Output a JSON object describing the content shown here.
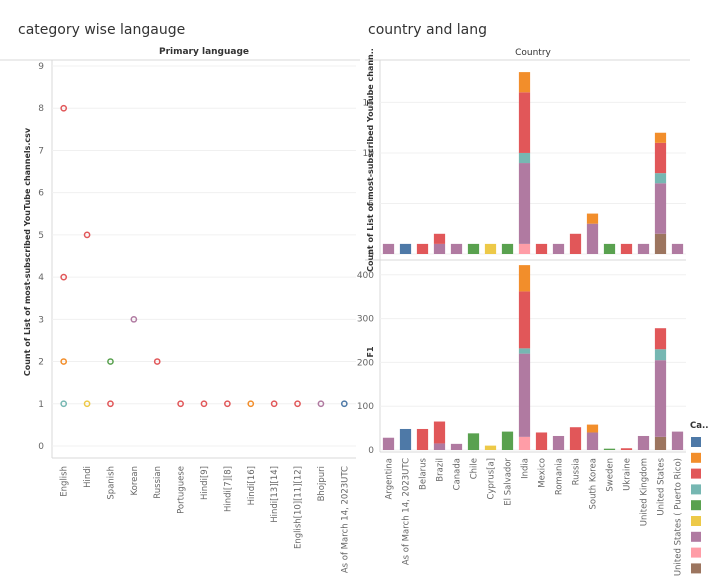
{
  "sheets": {
    "left_title": "category wise langauge",
    "right_title": "country and lang"
  },
  "colors": {
    "category_palette": [
      "#4e79a7",
      "#f28e2b",
      "#e15759",
      "#76b7b2",
      "#59a14f",
      "#edc948",
      "#b07aa1",
      "#ff9da7",
      "#9c755f"
    ]
  },
  "legend": {
    "title": "Ca..",
    "colors": [
      "#4e79a7",
      "#f28e2b",
      "#e15759",
      "#76b7b2",
      "#59a14f",
      "#edc948",
      "#b07aa1",
      "#ff9da7",
      "#9c755f"
    ]
  },
  "chart_data": [
    {
      "type": "scatter",
      "title": "Primary language",
      "ylabel": "Count of List of most-subscribed YouTube channels.csv",
      "xlabel": "",
      "ylim": [
        0,
        9
      ],
      "yticks": [
        0,
        1,
        2,
        3,
        4,
        5,
        6,
        7,
        8,
        9
      ],
      "grid": true,
      "categories": [
        "English",
        "Hindi",
        "Spanish",
        "Korean",
        "Russian",
        "Portuguese",
        "Hindi[9]",
        "Hindi[7][8]",
        "Hindi[16]",
        "Hindi[13][14]",
        "English[10][11][12]",
        "Bhojpuri",
        "As of March 14, 2023UTC"
      ],
      "points": [
        {
          "x": "English",
          "y": 8,
          "color": "#e15759"
        },
        {
          "x": "English",
          "y": 4,
          "color": "#e15759"
        },
        {
          "x": "English",
          "y": 2,
          "color": "#f28e2b"
        },
        {
          "x": "English",
          "y": 1,
          "color": "#76b7b2"
        },
        {
          "x": "Hindi",
          "y": 5,
          "color": "#e15759"
        },
        {
          "x": "Hindi",
          "y": 1,
          "color": "#edc948"
        },
        {
          "x": "Spanish",
          "y": 2,
          "color": "#59a14f"
        },
        {
          "x": "Spanish",
          "y": 1,
          "color": "#e15759"
        },
        {
          "x": "Korean",
          "y": 3,
          "color": "#b07aa1"
        },
        {
          "x": "Russian",
          "y": 2,
          "color": "#e15759"
        },
        {
          "x": "Portuguese",
          "y": 1,
          "color": "#e15759"
        },
        {
          "x": "Hindi[9]",
          "y": 1,
          "color": "#e15759"
        },
        {
          "x": "Hindi[7][8]",
          "y": 1,
          "color": "#e15759"
        },
        {
          "x": "Hindi[16]",
          "y": 1,
          "color": "#f28e2b"
        },
        {
          "x": "Hindi[13][14]",
          "y": 1,
          "color": "#e15759"
        },
        {
          "x": "English[10][11][12]",
          "y": 1,
          "color": "#e15759"
        },
        {
          "x": "Bhojpuri",
          "y": 1,
          "color": "#b07aa1"
        },
        {
          "x": "As of March 14, 2023UTC",
          "y": 1,
          "color": "#4e79a7"
        }
      ]
    },
    {
      "type": "bar",
      "stacked": true,
      "title": "Country",
      "categories": [
        "Argentina",
        "As of March 14, 2023UTC",
        "Belarus",
        "Brazil",
        "Canada",
        "Chile",
        "Cyprus[a]",
        "El Salvador",
        "India",
        "Mexico",
        "Romania",
        "Russia",
        "South Korea",
        "Sweden",
        "Ukraine",
        "United Kingdom",
        "United States",
        "United States ( Puerto Rico)"
      ],
      "panels": [
        {
          "ylabel": "Count of List of most-subscribed YouTube chann..",
          "ylim": [
            0,
            19
          ],
          "yticks": [
            0,
            5,
            10,
            15
          ],
          "stacks": [
            [
              {
                "color": "#b07aa1",
                "value": 1
              }
            ],
            [
              {
                "color": "#4e79a7",
                "value": 1
              }
            ],
            [
              {
                "color": "#e15759",
                "value": 1
              }
            ],
            [
              {
                "color": "#b07aa1",
                "value": 1
              },
              {
                "color": "#e15759",
                "value": 1
              }
            ],
            [
              {
                "color": "#b07aa1",
                "value": 1
              }
            ],
            [
              {
                "color": "#59a14f",
                "value": 1
              }
            ],
            [
              {
                "color": "#edc948",
                "value": 1
              }
            ],
            [
              {
                "color": "#59a14f",
                "value": 1
              }
            ],
            [
              {
                "color": "#ff9da7",
                "value": 1
              },
              {
                "color": "#b07aa1",
                "value": 8
              },
              {
                "color": "#76b7b2",
                "value": 1
              },
              {
                "color": "#e15759",
                "value": 6
              },
              {
                "color": "#f28e2b",
                "value": 2
              }
            ],
            [
              {
                "color": "#e15759",
                "value": 1
              }
            ],
            [
              {
                "color": "#b07aa1",
                "value": 1
              }
            ],
            [
              {
                "color": "#e15759",
                "value": 2
              }
            ],
            [
              {
                "color": "#b07aa1",
                "value": 3
              },
              {
                "color": "#f28e2b",
                "value": 1
              }
            ],
            [
              {
                "color": "#59a14f",
                "value": 1
              }
            ],
            [
              {
                "color": "#e15759",
                "value": 1
              }
            ],
            [
              {
                "color": "#b07aa1",
                "value": 1
              }
            ],
            [
              {
                "color": "#9c755f",
                "value": 2
              },
              {
                "color": "#b07aa1",
                "value": 5
              },
              {
                "color": "#76b7b2",
                "value": 1
              },
              {
                "color": "#e15759",
                "value": 3
              },
              {
                "color": "#f28e2b",
                "value": 1
              }
            ],
            [
              {
                "color": "#b07aa1",
                "value": 1
              }
            ]
          ]
        },
        {
          "ylabel": "F1",
          "ylim": [
            0,
            420
          ],
          "yticks": [
            0,
            100,
            200,
            300,
            400
          ],
          "stacks": [
            [
              {
                "color": "#b07aa1",
                "value": 28
              }
            ],
            [
              {
                "color": "#4e79a7",
                "value": 48
              }
            ],
            [
              {
                "color": "#e15759",
                "value": 48
              }
            ],
            [
              {
                "color": "#b07aa1",
                "value": 15
              },
              {
                "color": "#e15759",
                "value": 50
              }
            ],
            [
              {
                "color": "#b07aa1",
                "value": 14
              }
            ],
            [
              {
                "color": "#59a14f",
                "value": 38
              }
            ],
            [
              {
                "color": "#edc948",
                "value": 10
              }
            ],
            [
              {
                "color": "#59a14f",
                "value": 42
              }
            ],
            [
              {
                "color": "#ff9da7",
                "value": 30
              },
              {
                "color": "#b07aa1",
                "value": 190
              },
              {
                "color": "#76b7b2",
                "value": 12
              },
              {
                "color": "#e15759",
                "value": 130
              },
              {
                "color": "#f28e2b",
                "value": 60
              }
            ],
            [
              {
                "color": "#e15759",
                "value": 40
              }
            ],
            [
              {
                "color": "#b07aa1",
                "value": 32
              }
            ],
            [
              {
                "color": "#e15759",
                "value": 52
              }
            ],
            [
              {
                "color": "#b07aa1",
                "value": 40
              },
              {
                "color": "#f28e2b",
                "value": 18
              }
            ],
            [
              {
                "color": "#59a14f",
                "value": 3
              }
            ],
            [
              {
                "color": "#e15759",
                "value": 4
              }
            ],
            [
              {
                "color": "#b07aa1",
                "value": 32
              }
            ],
            [
              {
                "color": "#9c755f",
                "value": 30
              },
              {
                "color": "#b07aa1",
                "value": 175
              },
              {
                "color": "#76b7b2",
                "value": 25
              },
              {
                "color": "#e15759",
                "value": 48
              }
            ],
            [
              {
                "color": "#b07aa1",
                "value": 42
              }
            ]
          ]
        }
      ]
    }
  ]
}
